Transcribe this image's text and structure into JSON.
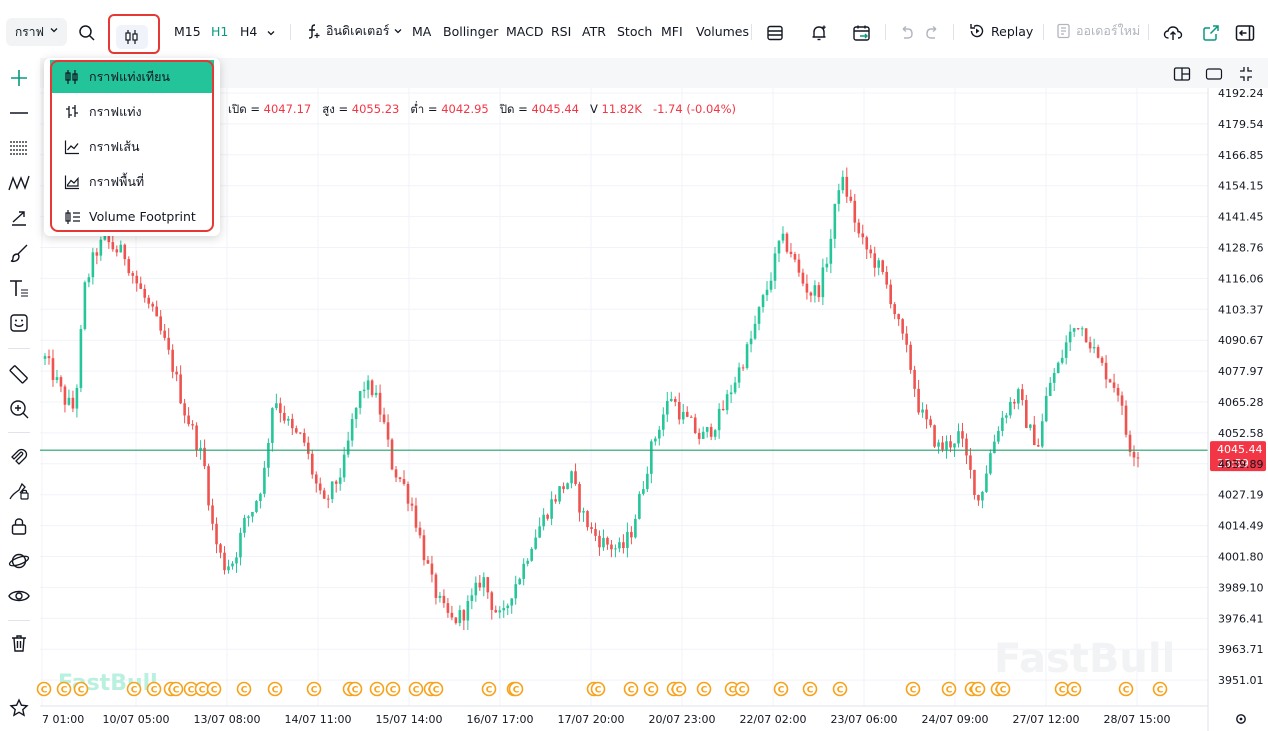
{
  "toolbar": {
    "chart_type_label": "กราฟ",
    "timeframes": [
      {
        "label": "M15",
        "active": false
      },
      {
        "label": "H1",
        "active": true
      },
      {
        "label": "H4",
        "active": false
      }
    ],
    "indicators_label": "อินดิเคเตอร์",
    "indicators": [
      "MA",
      "Bollinger",
      "MACD",
      "RSI",
      "ATR",
      "Stoch",
      "MFI",
      "Volumes"
    ],
    "replay_label": "Replay",
    "new_order_label": "ออเดอร์ใหม่"
  },
  "chart_type_menu": {
    "items": [
      {
        "label": "กราฟแท่งเทียน",
        "icon": "candles-icon",
        "selected": true
      },
      {
        "label": "กราฟแท่ง",
        "icon": "bars-icon",
        "selected": false
      },
      {
        "label": "กราฟเส้น",
        "icon": "line-icon",
        "selected": false
      },
      {
        "label": "กราฟพื้นที่",
        "icon": "area-icon",
        "selected": false
      },
      {
        "label": "Volume Footprint",
        "icon": "footprint-icon",
        "selected": false
      }
    ]
  },
  "ohlc": {
    "open_label": "เปิด =",
    "open": "4047.17",
    "high_label": "สูง =",
    "high": "4055.23",
    "low_label": "ต่ำ =",
    "low": "4042.95",
    "close_label": "ปิด =",
    "close": "4045.44",
    "volume_label": "V",
    "volume": "11.82K",
    "change": "-1.74 (-0.04%)"
  },
  "price_badge": {
    "price": "4045.44",
    "countdown": "23:59",
    "color": "#f23645"
  },
  "watermark": "FastBull",
  "colors": {
    "up": "#26c59a",
    "down": "#ef5350",
    "current_line": "#22a06b",
    "event_marker": "#f7a21b",
    "accent": "#089981"
  },
  "chart_data": {
    "type": "candlestick",
    "ylim": [
      3944.6,
      4195.5
    ],
    "y_ticks": [
      "4192.24",
      "4179.54",
      "4166.85",
      "4154.15",
      "4141.45",
      "4128.76",
      "4116.06",
      "4103.37",
      "4090.67",
      "4077.97",
      "4065.28",
      "4052.58",
      "4039.89",
      "4027.19",
      "4014.49",
      "4001.80",
      "3989.10",
      "3976.41",
      "3963.71",
      "3951.01"
    ],
    "x_ticks": [
      "7 01:00",
      "10/07 05:00",
      "13/07 08:00",
      "14/07 11:00",
      "15/07 14:00",
      "16/07 17:00",
      "17/07 20:00",
      "20/07 23:00",
      "22/07 02:00",
      "23/07 06:00",
      "24/07 09:00",
      "27/07 12:00",
      "28/07 15:00"
    ],
    "current_price": 4045.44,
    "event_marker_label": "C",
    "close_path": [
      [
        0,
        4083
      ],
      [
        10,
        4075
      ],
      [
        20,
        4066
      ],
      [
        30,
        4062
      ],
      [
        40,
        4112
      ],
      [
        50,
        4126
      ],
      [
        60,
        4132
      ],
      [
        70,
        4128
      ],
      [
        80,
        4126
      ],
      [
        90,
        4116
      ],
      [
        100,
        4108
      ],
      [
        110,
        4100
      ],
      [
        120,
        4090
      ],
      [
        130,
        4078
      ],
      [
        140,
        4062
      ],
      [
        150,
        4052
      ],
      [
        160,
        4040
      ],
      [
        170,
        4010
      ],
      [
        180,
        3998
      ],
      [
        190,
        4000
      ],
      [
        200,
        4015
      ],
      [
        210,
        4022
      ],
      [
        220,
        4034
      ],
      [
        230,
        4068
      ],
      [
        240,
        4060
      ],
      [
        250,
        4052
      ],
      [
        260,
        4050
      ],
      [
        270,
        4035
      ],
      [
        280,
        4022
      ],
      [
        290,
        4030
      ],
      [
        300,
        4038
      ],
      [
        310,
        4058
      ],
      [
        320,
        4072
      ],
      [
        330,
        4070
      ],
      [
        340,
        4058
      ],
      [
        350,
        4038
      ],
      [
        360,
        4032
      ],
      [
        370,
        4022
      ],
      [
        380,
        4005
      ],
      [
        390,
        3990
      ],
      [
        400,
        3980
      ],
      [
        410,
        3975
      ],
      [
        420,
        3978
      ],
      [
        430,
        3984
      ],
      [
        440,
        3994
      ],
      [
        450,
        3982
      ],
      [
        460,
        3975
      ],
      [
        470,
        3988
      ],
      [
        480,
        3996
      ],
      [
        490,
        4008
      ],
      [
        500,
        4016
      ],
      [
        510,
        4024
      ],
      [
        520,
        4030
      ],
      [
        530,
        4034
      ],
      [
        540,
        4020
      ],
      [
        550,
        4012
      ],
      [
        560,
        4008
      ],
      [
        570,
        4006
      ],
      [
        580,
        4004
      ],
      [
        590,
        4012
      ],
      [
        600,
        4028
      ],
      [
        610,
        4046
      ],
      [
        620,
        4058
      ],
      [
        630,
        4068
      ],
      [
        640,
        4060
      ],
      [
        650,
        4056
      ],
      [
        660,
        4050
      ],
      [
        670,
        4054
      ],
      [
        680,
        4060
      ],
      [
        690,
        4070
      ],
      [
        700,
        4080
      ],
      [
        710,
        4090
      ],
      [
        720,
        4104
      ],
      [
        730,
        4116
      ],
      [
        740,
        4132
      ],
      [
        750,
        4128
      ],
      [
        760,
        4116
      ],
      [
        770,
        4110
      ],
      [
        780,
        4112
      ],
      [
        790,
        4130
      ],
      [
        800,
        4158
      ],
      [
        810,
        4148
      ],
      [
        820,
        4132
      ],
      [
        830,
        4126
      ],
      [
        840,
        4120
      ],
      [
        850,
        4110
      ],
      [
        860,
        4095
      ],
      [
        870,
        4082
      ],
      [
        880,
        4062
      ],
      [
        890,
        4054
      ],
      [
        900,
        4046
      ],
      [
        910,
        4048
      ],
      [
        920,
        4052
      ],
      [
        930,
        4038
      ],
      [
        940,
        4024
      ],
      [
        950,
        4042
      ],
      [
        960,
        4056
      ],
      [
        970,
        4064
      ],
      [
        980,
        4068
      ],
      [
        990,
        4054
      ],
      [
        1000,
        4048
      ],
      [
        1010,
        4072
      ],
      [
        1020,
        4080
      ],
      [
        1030,
        4092
      ],
      [
        1040,
        4098
      ],
      [
        1050,
        4092
      ],
      [
        1060,
        4082
      ],
      [
        1070,
        4076
      ],
      [
        1080,
        4070
      ],
      [
        1090,
        4048
      ],
      [
        1100,
        4044
      ]
    ],
    "event_marker_x": [
      40,
      60,
      77,
      130,
      150,
      167,
      172,
      187,
      198,
      210,
      240,
      271,
      310,
      346,
      351,
      373,
      389,
      412,
      427,
      432,
      485,
      510,
      512,
      590,
      594,
      627,
      647,
      670,
      675,
      700,
      728,
      738,
      777,
      806,
      836,
      909,
      945,
      968,
      974,
      994,
      999,
      1058,
      1070,
      1122,
      1156
    ]
  }
}
